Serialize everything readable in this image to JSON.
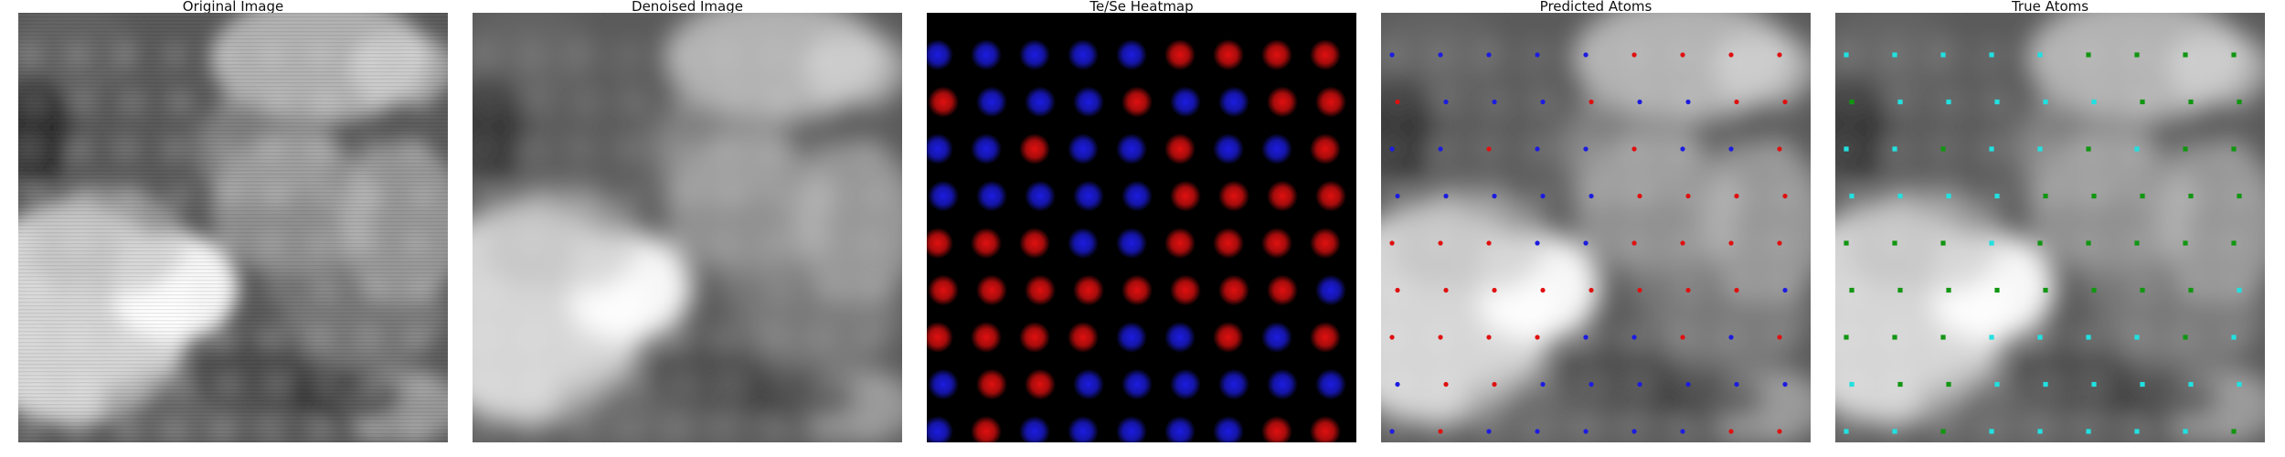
{
  "figure": {
    "panels": [
      {
        "key": "original",
        "title": "Original Image"
      },
      {
        "key": "denoised",
        "title": "Denoised Image"
      },
      {
        "key": "heatmap",
        "title": "Te/Se Heatmap"
      },
      {
        "key": "predicted",
        "title": "Predicted Atoms"
      },
      {
        "key": "true",
        "title": "True Atoms"
      }
    ],
    "colors": {
      "te": "#e01010",
      "se": "#1c1ce0",
      "true_a": "#22e0e0",
      "true_b": "#129612",
      "background_dark": "#000000"
    },
    "lattice": {
      "rows": 9,
      "cols": 9,
      "heatmap_labels": [
        "BBBBBRRRR",
        "RBBBRBBRR",
        "BBRBBRBBR",
        "BBBBBRRRR",
        "RRRBBRRRR",
        "RRRRRRRRB",
        "RRRRBBRBR",
        "BRRBBBBBB",
        "BRBBBBBRR"
      ],
      "predicted_labels": [
        "BBBBBRRRR",
        "RBBBRBBRR",
        "BBRBBRBBR",
        "BBBBBRRRR",
        "RRRBBRRRR",
        "RRRRRRRRB",
        "RRRRBBRBR",
        "BRRBBBBBB",
        "BRBBBBBRR"
      ],
      "true_labels": [
        "CCCCCGGGG",
        "GCCCCCGGG",
        "CCGCCGCGG",
        "CCCCGGGGG",
        "GGGCGGGGG",
        "GGGGGGGGC",
        "GGGCCCCGC",
        "CGGCCCCCC",
        "CCGCCCCCG"
      ]
    }
  }
}
